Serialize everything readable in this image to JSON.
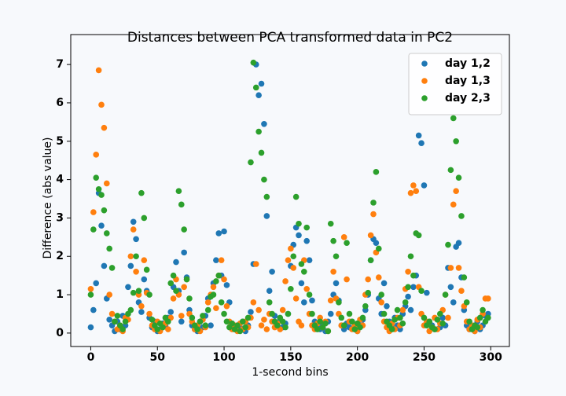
{
  "chart_data": {
    "type": "scatter",
    "title": "Distances between PCA transformed data in PC2",
    "x_label": "1-second bins",
    "y_label": "Difference (abs value)",
    "xlim": [
      -15,
      314
    ],
    "ylim": [
      -0.35,
      7.78
    ],
    "xticks": [
      0,
      50,
      100,
      150,
      200,
      250,
      300
    ],
    "yticks": [
      0,
      1,
      2,
      3,
      4,
      5,
      6,
      7
    ],
    "grid": false,
    "legend": "upper right",
    "x": [
      0,
      2,
      4,
      6,
      8,
      10,
      12,
      14,
      16,
      18,
      20,
      22,
      24,
      26,
      28,
      30,
      32,
      34,
      36,
      38,
      40,
      42,
      44,
      46,
      48,
      50,
      52,
      54,
      56,
      58,
      60,
      62,
      64,
      66,
      68,
      70,
      72,
      74,
      76,
      78,
      80,
      82,
      84,
      86,
      88,
      90,
      92,
      94,
      96,
      98,
      100,
      102,
      104,
      106,
      108,
      110,
      112,
      114,
      116,
      118,
      120,
      122,
      124,
      126,
      128,
      130,
      132,
      134,
      136,
      138,
      140,
      142,
      144,
      146,
      148,
      150,
      152,
      154,
      156,
      158,
      160,
      162,
      164,
      166,
      168,
      170,
      172,
      174,
      176,
      178,
      180,
      182,
      184,
      186,
      188,
      190,
      192,
      194,
      196,
      198,
      200,
      202,
      204,
      206,
      208,
      210,
      212,
      214,
      216,
      218,
      220,
      222,
      224,
      226,
      228,
      230,
      232,
      234,
      236,
      238,
      240,
      242,
      244,
      246,
      248,
      250,
      252,
      254,
      256,
      258,
      260,
      262,
      264,
      266,
      268,
      270,
      272,
      274,
      276,
      278,
      280,
      282,
      284,
      286,
      288,
      290,
      292,
      294,
      296,
      298
    ],
    "series": [
      {
        "name": "day 1,2",
        "color": "#1f77b4",
        "values": [
          0.15,
          0.6,
          1.3,
          3.65,
          2.8,
          1.75,
          0.9,
          0.35,
          0.2,
          0.05,
          0.3,
          0.1,
          0.45,
          0.2,
          1.2,
          1.75,
          2.9,
          2.45,
          0.8,
          0.55,
          1.4,
          1.1,
          0.4,
          0.15,
          0.3,
          0.05,
          0.1,
          0.25,
          0.2,
          0.4,
          0.55,
          1.2,
          1.85,
          1.1,
          0.3,
          2.1,
          1.45,
          0.6,
          0.2,
          0.1,
          0.05,
          0.3,
          0.15,
          0.45,
          0.9,
          0.2,
          1.3,
          1.9,
          2.6,
          1.5,
          2.65,
          1.25,
          0.8,
          0.25,
          0.1,
          0.2,
          0.15,
          0.3,
          0.05,
          0.2,
          0.55,
          1.8,
          7.0,
          6.2,
          6.5,
          5.45,
          3.05,
          1.1,
          1.6,
          0.45,
          0.2,
          0.35,
          0.15,
          0.25,
          0.5,
          1.75,
          2.3,
          2.75,
          2.55,
          1.3,
          0.8,
          2.4,
          1.9,
          0.85,
          0.3,
          0.15,
          0.1,
          0.2,
          0.05,
          0.3,
          0.5,
          1.0,
          1.3,
          0.85,
          0.2,
          0.1,
          0.25,
          0.15,
          0.3,
          0.1,
          0.05,
          0.2,
          0.35,
          0.6,
          1.0,
          1.9,
          2.45,
          2.35,
          0.9,
          0.5,
          1.3,
          0.7,
          0.3,
          0.15,
          0.4,
          0.2,
          0.1,
          0.5,
          0.7,
          0.95,
          0.6,
          1.2,
          1.5,
          5.15,
          4.95,
          3.85,
          1.05,
          0.3,
          0.2,
          0.1,
          0.35,
          0.15,
          0.4,
          0.2,
          1.7,
          1.2,
          0.8,
          2.25,
          2.35,
          1.45,
          0.6,
          0.2,
          0.1,
          0.15,
          0.05,
          0.3,
          0.1,
          0.2,
          0.45,
          0.5
        ]
      },
      {
        "name": "day 1,3",
        "color": "#ff7f0e",
        "values": [
          1.15,
          3.15,
          4.65,
          6.85,
          5.95,
          5.35,
          3.9,
          1.0,
          0.5,
          0.3,
          0.1,
          0.2,
          0.05,
          0.4,
          0.35,
          2.0,
          2.7,
          1.6,
          1.0,
          0.7,
          1.9,
          1.05,
          0.5,
          0.2,
          0.1,
          0.3,
          0.05,
          0.15,
          0.25,
          0.1,
          0.4,
          0.9,
          1.4,
          1.0,
          0.45,
          1.2,
          1.4,
          0.5,
          0.3,
          0.1,
          0.2,
          0.05,
          0.35,
          0.15,
          0.8,
          1.0,
          1.2,
          0.65,
          1.5,
          1.9,
          1.4,
          0.7,
          0.3,
          0.1,
          0.2,
          0.05,
          0.25,
          0.1,
          0.3,
          0.15,
          0.4,
          0.8,
          1.8,
          0.6,
          0.2,
          0.35,
          0.1,
          0.5,
          0.3,
          0.15,
          0.25,
          0.1,
          0.6,
          1.35,
          1.9,
          2.2,
          1.7,
          0.9,
          0.3,
          0.2,
          1.9,
          1.15,
          0.5,
          0.2,
          0.1,
          0.25,
          0.4,
          0.15,
          0.3,
          0.05,
          0.85,
          1.6,
          0.9,
          0.5,
          0.2,
          2.5,
          1.4,
          0.3,
          0.1,
          0.2,
          0.05,
          0.35,
          0.2,
          1.0,
          1.4,
          2.55,
          3.1,
          2.1,
          1.45,
          0.8,
          0.3,
          0.15,
          0.05,
          0.25,
          0.1,
          0.4,
          0.2,
          0.6,
          1.15,
          1.6,
          3.65,
          3.85,
          3.7,
          1.2,
          0.5,
          0.2,
          0.3,
          0.05,
          0.15,
          0.4,
          0.1,
          0.25,
          0.6,
          1.0,
          0.4,
          1.7,
          3.35,
          3.7,
          1.7,
          1.1,
          0.7,
          0.3,
          0.1,
          0.2,
          0.05,
          0.35,
          0.15,
          0.5,
          0.9,
          0.9
        ]
      },
      {
        "name": "day 2,3",
        "color": "#2ca02c",
        "values": [
          1.0,
          2.7,
          4.05,
          3.75,
          3.6,
          3.2,
          2.6,
          2.2,
          1.7,
          0.3,
          0.45,
          0.2,
          0.1,
          0.3,
          0.5,
          0.6,
          1.05,
          2.0,
          1.1,
          3.65,
          3.0,
          1.65,
          1.0,
          0.35,
          0.2,
          0.1,
          0.25,
          0.15,
          0.4,
          0.3,
          1.3,
          1.5,
          1.1,
          3.7,
          3.35,
          2.7,
          1.4,
          0.9,
          0.4,
          0.2,
          0.1,
          0.3,
          0.45,
          0.2,
          0.6,
          0.95,
          1.0,
          1.35,
          1.5,
          0.8,
          0.5,
          0.3,
          0.15,
          0.25,
          0.1,
          0.2,
          0.05,
          0.3,
          0.15,
          0.4,
          4.45,
          7.05,
          6.4,
          5.25,
          4.7,
          4.0,
          3.55,
          0.8,
          0.5,
          0.3,
          0.2,
          0.4,
          0.3,
          0.15,
          0.5,
          1.15,
          2.0,
          3.55,
          2.85,
          1.8,
          1.6,
          2.75,
          1.0,
          0.5,
          0.2,
          0.1,
          0.3,
          0.15,
          0.25,
          0.05,
          2.85,
          2.4,
          2.0,
          0.8,
          0.4,
          0.2,
          2.35,
          0.5,
          0.3,
          0.1,
          0.25,
          0.15,
          0.4,
          0.7,
          1.05,
          1.9,
          3.4,
          4.2,
          2.2,
          1.0,
          0.5,
          0.3,
          0.2,
          0.1,
          0.35,
          0.6,
          0.4,
          0.25,
          0.8,
          1.2,
          2.0,
          1.5,
          2.6,
          2.55,
          1.1,
          0.4,
          0.2,
          0.3,
          0.15,
          0.1,
          0.35,
          0.5,
          0.25,
          1.0,
          2.3,
          4.25,
          5.6,
          5.0,
          4.05,
          3.05,
          1.45,
          0.8,
          0.3,
          0.1,
          0.2,
          0.15,
          0.4,
          0.6,
          0.3,
          0.4
        ]
      }
    ]
  }
}
